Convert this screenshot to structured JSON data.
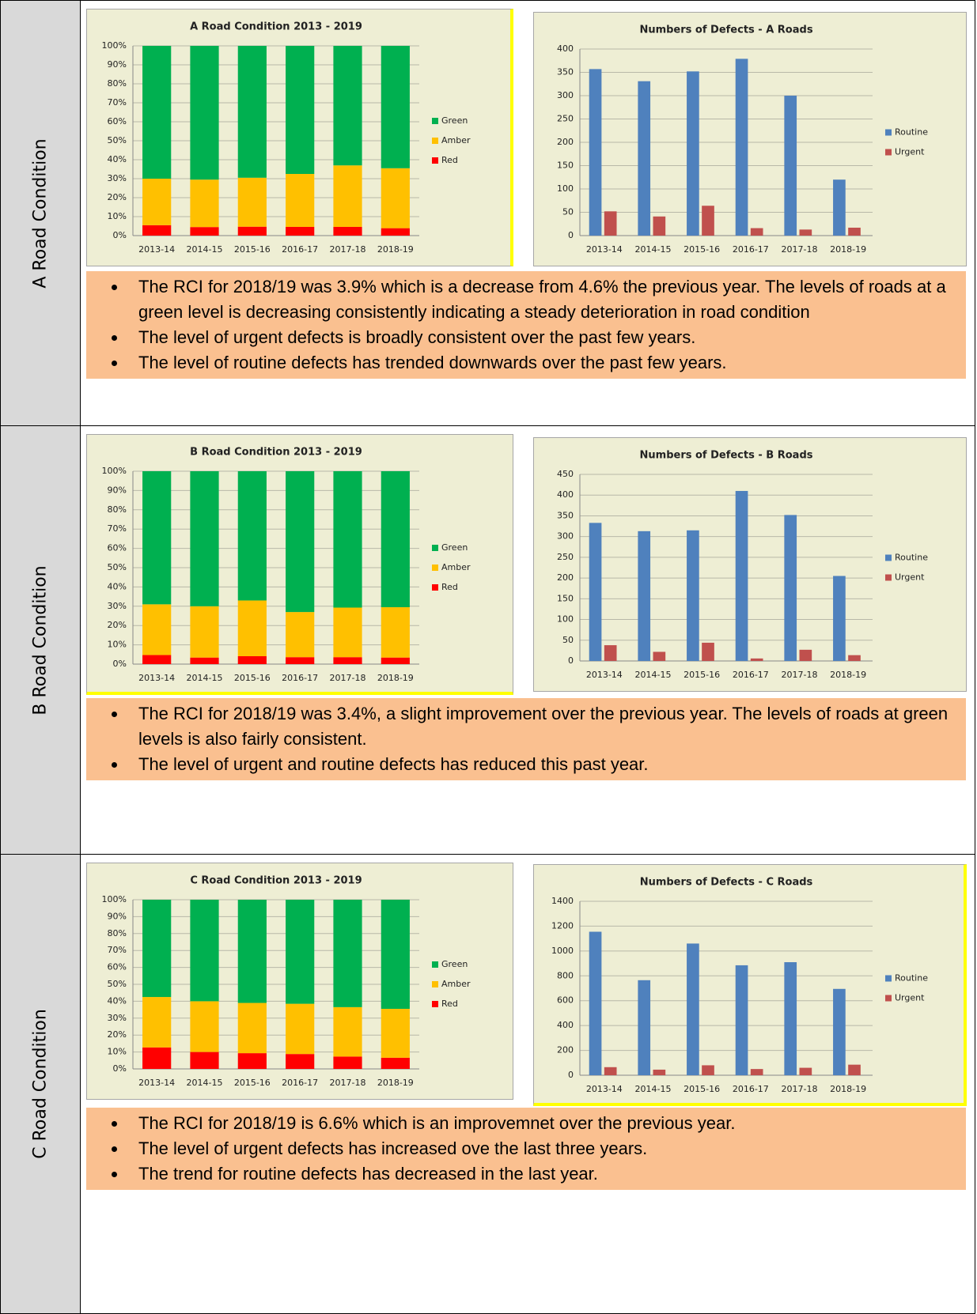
{
  "sections": [
    {
      "label": "A Road Condition",
      "condition_chart": {
        "type": "stacked_bar",
        "title": "A Road Condition 2013 - 2019",
        "categories": [
          "2013-14",
          "2014-15",
          "2015-16",
          "2016-17",
          "2017-18",
          "2018-19"
        ],
        "series": [
          {
            "name": "Red",
            "color": "#ff0000",
            "values": [
              5.5,
              4.5,
              4.7,
              4.6,
              4.6,
              3.9
            ]
          },
          {
            "name": "Amber",
            "color": "#ffc000",
            "values": [
              24.5,
              25,
              25.8,
              27.9,
              32.4,
              31.6
            ]
          },
          {
            "name": "Green",
            "color": "#00b050",
            "values": [
              70,
              70.5,
              69.5,
              67.5,
              63,
              64.5
            ]
          }
        ],
        "ylim": [
          0,
          100
        ],
        "yticks": [
          {
            "value": 0,
            "label": "0%"
          },
          {
            "value": 10,
            "label": "10%"
          },
          {
            "value": 20,
            "label": "20%"
          },
          {
            "value": 30,
            "label": "30%"
          },
          {
            "value": 40,
            "label": "40%"
          },
          {
            "value": 50,
            "label": "50%"
          },
          {
            "value": 60,
            "label": "60%"
          },
          {
            "value": 70,
            "label": "70%"
          },
          {
            "value": 80,
            "label": "80%"
          },
          {
            "value": 90,
            "label": "90%"
          },
          {
            "value": 100,
            "label": "100%"
          }
        ]
      },
      "defects_chart": {
        "type": "bar",
        "title": "Numbers of Defects - A Roads",
        "categories": [
          "2013-14",
          "2014-15",
          "2015-16",
          "2016-17",
          "2017-18",
          "2018-19"
        ],
        "series": [
          {
            "name": "Routine",
            "color": "#4f81bd",
            "values": [
              357,
              331,
              352,
              379,
              300,
              120
            ]
          },
          {
            "name": "Urgent",
            "color": "#c0504d",
            "values": [
              52,
              41,
              64,
              16,
              13,
              17
            ]
          }
        ],
        "ylim": [
          0,
          400
        ],
        "yticks": [
          0,
          50,
          100,
          150,
          200,
          250,
          300,
          350,
          400
        ]
      },
      "notes": [
        "The RCI for 2018/19 was 3.9% which is a decrease from 4.6% the previous year.  The levels of roads at a green level is decreasing consistently indicating a steady deterioration in road condition",
        "The level of urgent defects is broadly consistent over the past few years.",
        "The level of routine defects has trended downwards over the past  few years."
      ]
    },
    {
      "label": "B Road Condition",
      "condition_chart": {
        "type": "stacked_bar",
        "title": "B Road Condition 2013 - 2019",
        "categories": [
          "2013-14",
          "2014-15",
          "2015-16",
          "2016-17",
          "2017-18",
          "2018-19"
        ],
        "series": [
          {
            "name": "Red",
            "color": "#ff0000",
            "values": [
              4.7,
              3.4,
              4.1,
              3.6,
              3.6,
              3.4
            ]
          },
          {
            "name": "Amber",
            "color": "#ffc000",
            "values": [
              26.3,
              26.6,
              28.9,
              23.4,
              25.7,
              26.1
            ]
          },
          {
            "name": "Green",
            "color": "#00b050",
            "values": [
              69,
              70,
              67,
              73,
              70.7,
              70.5
            ]
          }
        ],
        "ylim": [
          0,
          100
        ],
        "yticks": [
          {
            "value": 0,
            "label": "0%"
          },
          {
            "value": 10,
            "label": "10%"
          },
          {
            "value": 20,
            "label": "20%"
          },
          {
            "value": 30,
            "label": "30%"
          },
          {
            "value": 40,
            "label": "40%"
          },
          {
            "value": 50,
            "label": "50%"
          },
          {
            "value": 60,
            "label": "60%"
          },
          {
            "value": 70,
            "label": "70%"
          },
          {
            "value": 80,
            "label": "80%"
          },
          {
            "value": 90,
            "label": "90%"
          },
          {
            "value": 100,
            "label": "100%"
          }
        ]
      },
      "defects_chart": {
        "type": "bar",
        "title": "Numbers of Defects - B Roads",
        "categories": [
          "2013-14",
          "2014-15",
          "2015-16",
          "2016-17",
          "2017-18",
          "2018-19"
        ],
        "series": [
          {
            "name": "Routine",
            "color": "#4f81bd",
            "values": [
              333,
              313,
              315,
              410,
              352,
              205
            ]
          },
          {
            "name": "Urgent",
            "color": "#c0504d",
            "values": [
              38,
              22,
              44,
              6,
              27,
              14
            ]
          }
        ],
        "ylim": [
          0,
          450
        ],
        "yticks": [
          0,
          50,
          100,
          150,
          200,
          250,
          300,
          350,
          400,
          450
        ]
      },
      "notes": [
        "The RCI for 2018/19 was 3.4%, a slight improvement over the previous year.  The levels of roads at green levels is also fairly consistent.",
        "The level of urgent and routine defects has reduced this past year."
      ]
    },
    {
      "label": "C Road Condition",
      "condition_chart": {
        "type": "stacked_bar",
        "title": "C Road Condition 2013 - 2019",
        "categories": [
          "2013-14",
          "2014-15",
          "2015-16",
          "2016-17",
          "2017-18",
          "2018-19"
        ],
        "series": [
          {
            "name": "Red",
            "color": "#ff0000",
            "values": [
              12.7,
              10,
              9.3,
              8.8,
              7.3,
              6.6
            ]
          },
          {
            "name": "Amber",
            "color": "#ffc000",
            "values": [
              29.8,
              30,
              29.7,
              29.7,
              29.2,
              28.9
            ]
          },
          {
            "name": "Green",
            "color": "#00b050",
            "values": [
              57.5,
              60,
              61,
              61.5,
              63.5,
              64.5
            ]
          }
        ],
        "ylim": [
          0,
          100
        ],
        "yticks": [
          {
            "value": 0,
            "label": "0%"
          },
          {
            "value": 10,
            "label": "10%"
          },
          {
            "value": 20,
            "label": "20%"
          },
          {
            "value": 30,
            "label": "30%"
          },
          {
            "value": 40,
            "label": "40%"
          },
          {
            "value": 50,
            "label": "50%"
          },
          {
            "value": 60,
            "label": "60%"
          },
          {
            "value": 70,
            "label": "70%"
          },
          {
            "value": 80,
            "label": "80%"
          },
          {
            "value": 90,
            "label": "90%"
          },
          {
            "value": 100,
            "label": "100%"
          }
        ]
      },
      "defects_chart": {
        "type": "bar",
        "title": "Numbers of Defects - C Roads",
        "categories": [
          "2013-14",
          "2014-15",
          "2015-16",
          "2016-17",
          "2017-18",
          "2018-19"
        ],
        "series": [
          {
            "name": "Routine",
            "color": "#4f81bd",
            "values": [
              1155,
              765,
              1060,
              885,
              910,
              695
            ]
          },
          {
            "name": "Urgent",
            "color": "#c0504d",
            "values": [
              65,
              45,
              80,
              50,
              60,
              85
            ]
          }
        ],
        "ylim": [
          0,
          1400
        ],
        "yticks": [
          0,
          200,
          400,
          600,
          800,
          1000,
          1200,
          1400
        ]
      },
      "notes": [
        "The RCI for 2018/19 is 6.6% which is an improvemnet over the previous year.",
        "The level of urgent defects has increased ove the last three years.",
        "The trend for routine defects has decreased in the last year."
      ]
    }
  ]
}
